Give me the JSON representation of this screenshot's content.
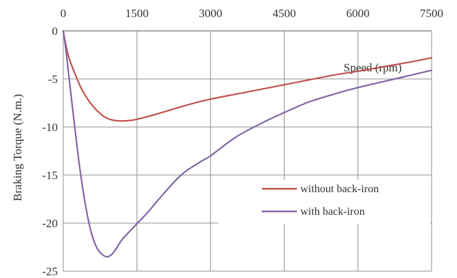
{
  "chart_data": {
    "type": "line",
    "xlabel": "Speed (rpm)",
    "ylabel": "Braking Torque (N.m.)",
    "xlim": [
      0,
      7500
    ],
    "ylim": [
      -25,
      0
    ],
    "x_axis_position": "top",
    "xticks": [
      0,
      1500,
      3000,
      4500,
      6000,
      7500
    ],
    "yticks": [
      0,
      -5,
      -10,
      -15,
      -20,
      -25
    ],
    "grid": true,
    "legend_position": "right",
    "series": [
      {
        "name": "without back-iron",
        "color": "#c0504d",
        "x": [
          0,
          100,
          250,
          400,
          600,
          800,
          950,
          1100,
          1300,
          1500,
          1800,
          2200,
          2600,
          3000,
          3500,
          4000,
          4500,
          5000,
          5500,
          6000,
          6500,
          7000,
          7500
        ],
        "y": [
          0,
          -2.5,
          -4.6,
          -6.3,
          -7.8,
          -8.8,
          -9.2,
          -9.35,
          -9.35,
          -9.2,
          -8.8,
          -8.2,
          -7.6,
          -7.1,
          -6.6,
          -6.1,
          -5.6,
          -5.1,
          -4.6,
          -4.2,
          -3.75,
          -3.3,
          -2.8
        ]
      },
      {
        "name": "with back-iron",
        "color": "#8064a2",
        "x": [
          0,
          50,
          100,
          200,
          300,
          400,
          500,
          600,
          700,
          800,
          900,
          1000,
          1100,
          1200,
          1400,
          1700,
          2000,
          2400,
          2800,
          3000,
          3500,
          4000,
          4500,
          5000,
          5500,
          6000,
          6500,
          7000,
          7500
        ],
        "y": [
          0,
          -1.8,
          -4.0,
          -8.5,
          -12.8,
          -16.5,
          -19.4,
          -21.5,
          -22.7,
          -23.3,
          -23.5,
          -23.2,
          -22.5,
          -21.7,
          -20.6,
          -19.0,
          -17.2,
          -15.0,
          -13.6,
          -13.0,
          -11.1,
          -9.7,
          -8.5,
          -7.4,
          -6.6,
          -5.9,
          -5.3,
          -4.7,
          -4.1
        ]
      }
    ]
  }
}
